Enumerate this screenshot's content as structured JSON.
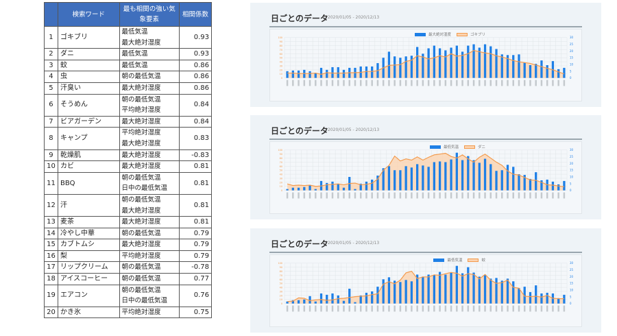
{
  "table": {
    "headers": [
      "",
      "検索ワード",
      "最も相関の強い気象要素",
      "相関係数"
    ],
    "rows": [
      {
        "rank": "1",
        "word": "ゴキブリ",
        "factors": [
          "最低気温",
          "最大絶対湿度"
        ],
        "coef": "0.93"
      },
      {
        "rank": "2",
        "word": "ダニ",
        "factors": [
          "最低気温"
        ],
        "coef": "0.93"
      },
      {
        "rank": "3",
        "word": "蚊",
        "factors": [
          "最低気温"
        ],
        "coef": "0.86"
      },
      {
        "rank": "4",
        "word": "虫",
        "factors": [
          "朝の最低気温"
        ],
        "coef": "0.86"
      },
      {
        "rank": "5",
        "word": "汗臭い",
        "factors": [
          "最大絶対湿度"
        ],
        "coef": "0.86"
      },
      {
        "rank": "6",
        "word": "そうめん",
        "factors": [
          "朝の最低気温",
          "平均絶対湿度"
        ],
        "coef": "0.84"
      },
      {
        "rank": "7",
        "word": "ビアガーデン",
        "factors": [
          "最大絶対湿度"
        ],
        "coef": "0.84"
      },
      {
        "rank": "8",
        "word": "キャンプ",
        "factors": [
          "平均絶対湿度",
          "最大絶対湿度"
        ],
        "coef": "0.83"
      },
      {
        "rank": "9",
        "word": "乾燥肌",
        "factors": [
          "最大絶対湿度"
        ],
        "coef": "-0.83"
      },
      {
        "rank": "10",
        "word": "カビ",
        "factors": [
          "最大絶対湿度"
        ],
        "coef": "0.81"
      },
      {
        "rank": "11",
        "word": "BBQ",
        "factors": [
          "朝の最低気温",
          "日中の最低気温"
        ],
        "coef": "0.81"
      },
      {
        "rank": "12",
        "word": "汗",
        "factors": [
          "朝の最低気温",
          "最大絶対湿度"
        ],
        "coef": "0.81"
      },
      {
        "rank": "13",
        "word": "麦茶",
        "factors": [
          "最大絶対湿度"
        ],
        "coef": "0.81"
      },
      {
        "rank": "14",
        "word": "冷やし中華",
        "factors": [
          "朝の最低気温"
        ],
        "coef": "0.79"
      },
      {
        "rank": "15",
        "word": "カブトムシ",
        "factors": [
          "最大絶対湿度"
        ],
        "coef": "0.79"
      },
      {
        "rank": "16",
        "word": "梨",
        "factors": [
          "平均絶対湿度"
        ],
        "coef": "0.79"
      },
      {
        "rank": "17",
        "word": "リップクリーム",
        "factors": [
          "朝の最低気温"
        ],
        "coef": "-0.78"
      },
      {
        "rank": "18",
        "word": "アイスコーヒー",
        "factors": [
          "朝の最低気温"
        ],
        "coef": "0.77"
      },
      {
        "rank": "19",
        "word": "エアコン",
        "factors": [
          "朝の最低気温",
          "日中の最低気温"
        ],
        "coef": "0.76"
      },
      {
        "rank": "20",
        "word": "かき氷",
        "factors": [
          "平均絶対湿度"
        ],
        "coef": "0.75"
      }
    ]
  },
  "colors": {
    "header_bg": "#3f6fbd",
    "bar": "#1e7fe6",
    "line": "#f39a4c",
    "area": "#fbd3b0",
    "panel_bg": "#eef3f7"
  },
  "chart_data": [
    {
      "type": "bar+area",
      "title": "日ごとのデータ",
      "subtitle": "2020/01/05 - 2020/12/13",
      "legend": [
        "最大絶対湿度",
        "ゴキブリ"
      ],
      "left_axis": {
        "ylim": [
          0,
          100
        ],
        "ticks": [
          0,
          10,
          20,
          30,
          40,
          50,
          60,
          70,
          80,
          90,
          100
        ]
      },
      "right_axis": {
        "ylim": [
          0,
          30
        ],
        "ticks": [
          0,
          5,
          10,
          15,
          20,
          25,
          30
        ]
      },
      "grid": true,
      "n_points": 50,
      "series": [
        {
          "name": "最大絶対湿度",
          "kind": "bar",
          "axis": "right",
          "values": [
            5,
            5.5,
            5.5,
            6,
            5,
            3.5,
            7.5,
            6,
            8,
            8,
            6,
            7.5,
            7.5,
            8.5,
            8.5,
            8.5,
            11,
            15,
            19.5,
            16,
            15,
            16,
            16.5,
            23,
            18,
            22,
            24,
            22,
            20.5,
            22.5,
            24,
            19.5,
            24,
            25,
            22.5,
            25,
            23.5,
            21.5,
            17.5,
            17,
            17,
            17.5,
            11.5,
            9.5,
            10.5,
            13,
            9.5,
            12.5,
            6.5,
            7.5
          ]
        },
        {
          "name": "ゴキブリ",
          "kind": "area",
          "axis": "left",
          "values": [
            12,
            12,
            11,
            11,
            11,
            12,
            9,
            13,
            12,
            12,
            12,
            13,
            13,
            14,
            16,
            16,
            18,
            25,
            31,
            32,
            33,
            41,
            44,
            55,
            52,
            47,
            50,
            55,
            52,
            60,
            54,
            56,
            60,
            68,
            65,
            62,
            60,
            55,
            52,
            48,
            43,
            40,
            38,
            36,
            32,
            28,
            24,
            20,
            15,
            10
          ]
        }
      ]
    },
    {
      "type": "bar+area",
      "title": "日ごとのデータ",
      "subtitle": "2020/01/05 - 2020/12/13",
      "legend": [
        "最低気温",
        "ダニ"
      ],
      "left_axis": {
        "ylim": [
          0,
          100
        ],
        "ticks": [
          0,
          10,
          20,
          30,
          40,
          50,
          60,
          70,
          80,
          90,
          100
        ]
      },
      "right_axis": {
        "ylim": [
          0,
          30
        ],
        "ticks": [
          0,
          5,
          10,
          15,
          20,
          25,
          30
        ]
      },
      "grid": true,
      "n_points": 50,
      "series": [
        {
          "name": "最低気温",
          "kind": "bar",
          "axis": "right",
          "values": [
            1,
            2,
            2,
            2.5,
            4,
            1,
            7,
            5.5,
            6.5,
            5,
            2,
            10,
            1,
            5,
            6.5,
            8,
            11,
            16.5,
            18,
            15,
            15,
            18,
            17,
            19.5,
            18.5,
            17.5,
            21,
            21.5,
            21,
            23,
            28,
            22.5,
            25.5,
            22.5,
            20.5,
            23.5,
            19.5,
            14.5,
            15,
            19,
            17.5,
            12,
            11.5,
            8.5,
            13.5,
            7.5,
            8,
            6.5,
            4.5,
            7
          ]
        },
        {
          "name": "ダニ",
          "kind": "area",
          "axis": "left",
          "values": [
            16,
            12,
            13,
            12,
            13,
            10,
            11,
            14,
            15,
            16,
            14,
            17,
            18,
            14,
            15,
            18,
            28,
            50,
            62,
            85,
            73,
            78,
            75,
            83,
            75,
            82,
            88,
            90,
            92,
            84,
            80,
            88,
            78,
            70,
            82,
            90,
            80,
            70,
            62,
            48,
            40,
            38,
            32,
            26,
            25,
            20,
            14,
            13,
            11,
            9
          ]
        }
      ]
    },
    {
      "type": "bar+area",
      "title": "日ごとのデータ",
      "subtitle": "2020/01/05 - 2020/12/13",
      "legend": [
        "最低気温",
        "蚊"
      ],
      "left_axis": {
        "ylim": [
          0,
          100
        ],
        "ticks": [
          0,
          10,
          20,
          30,
          40,
          50,
          60,
          70,
          80,
          90,
          100
        ]
      },
      "right_axis": {
        "ylim": [
          0,
          30
        ],
        "ticks": [
          0,
          5,
          10,
          15,
          20,
          25,
          30
        ]
      },
      "grid": true,
      "n_points": 50,
      "series": [
        {
          "name": "最低気温",
          "kind": "bar",
          "axis": "right",
          "values": [
            1.5,
            2.5,
            2.5,
            3,
            5.5,
            1.5,
            7.5,
            6.5,
            7.5,
            6,
            2,
            11,
            1,
            6,
            8,
            9,
            12.5,
            18,
            19.5,
            17,
            16,
            17.5,
            16.5,
            21.5,
            20,
            21.5,
            21,
            23.5,
            21.5,
            23,
            28,
            22.5,
            27,
            23,
            20,
            21.5,
            18.5,
            19,
            17,
            18.5,
            16.5,
            11.5,
            12.5,
            8.5,
            13.5,
            7.5,
            8,
            7.5,
            4,
            6.5
          ]
        },
        {
          "name": "蚊",
          "kind": "area",
          "axis": "left",
          "values": [
            5,
            6,
            14,
            13,
            7,
            9,
            10,
            8,
            9,
            12,
            13,
            15,
            17,
            18,
            19,
            22,
            24,
            48,
            54,
            49,
            58,
            76,
            80,
            62,
            66,
            66,
            71,
            70,
            74,
            77,
            75,
            68,
            74,
            72,
            61,
            72,
            58,
            50,
            52,
            58,
            40,
            38,
            18,
            17,
            18,
            16,
            20,
            13,
            12,
            12
          ]
        }
      ]
    }
  ]
}
